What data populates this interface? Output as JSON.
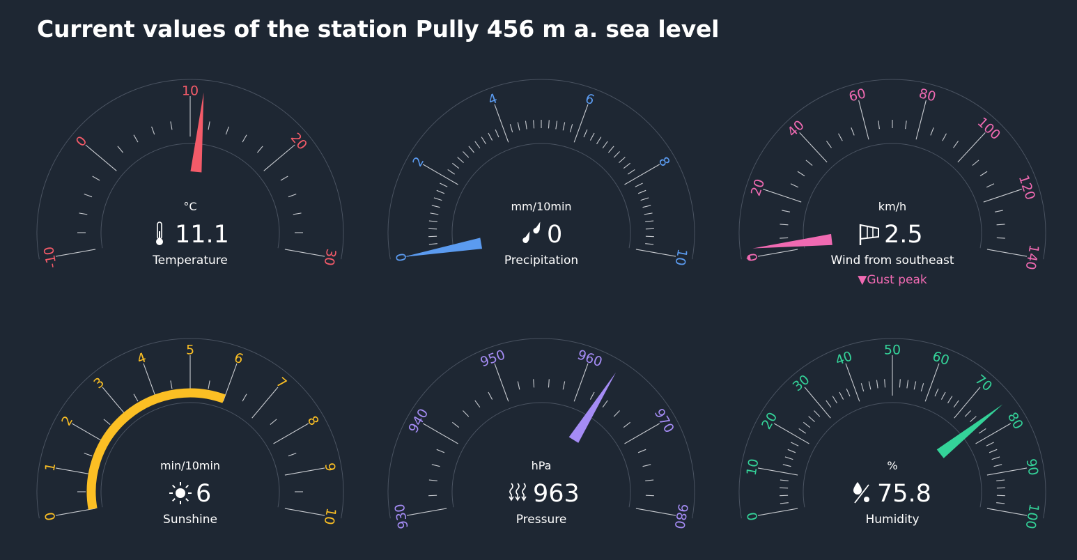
{
  "page": {
    "title": "Current values of the station Pully 456 m a. sea level"
  },
  "gauges": [
    {
      "id": "temperature",
      "icon": "thermometer-icon",
      "unit": "°C",
      "value_text": "11.1",
      "label": "Temperature",
      "value": 11.1,
      "min": -10,
      "max": 30,
      "majors": [
        -10,
        0,
        10,
        20,
        30
      ],
      "minors_per_major": 5,
      "indicator": "needle",
      "color": "#f45b69"
    },
    {
      "id": "precipitation",
      "icon": "rain-drops-icon",
      "unit": "mm/10min",
      "value_text": "0",
      "label": "Precipitation",
      "value": 0,
      "min": 0,
      "max": 10,
      "majors": [
        0,
        2,
        4,
        6,
        8,
        10
      ],
      "minors_per_major": 10,
      "indicator": "needle",
      "color": "#5b9bf0"
    },
    {
      "id": "wind",
      "icon": "wind-sock-icon",
      "unit": "km/h",
      "value_text": "2.5",
      "label": "Wind from southeast",
      "value": 2.5,
      "gust_value": 0,
      "gust_label": "▼Gust peak",
      "min": 0,
      "max": 140,
      "majors": [
        0,
        20,
        40,
        60,
        80,
        100,
        120,
        140
      ],
      "minors_per_major": 4,
      "indicator": "needle",
      "color": "#f06ab2"
    },
    {
      "id": "sunshine",
      "icon": "sun-icon",
      "unit": "min/10min",
      "value_text": "6",
      "label": "Sunshine",
      "value": 6,
      "min": 0,
      "max": 10,
      "majors": [
        0,
        1,
        2,
        3,
        4,
        5,
        6,
        7,
        8,
        9,
        10
      ],
      "minors_per_major": 2,
      "indicator": "arc",
      "color": "#fbbf24"
    },
    {
      "id": "pressure",
      "icon": "pressure-arrows-icon",
      "unit": "hPa",
      "value_text": "963",
      "label": "Pressure",
      "value": 963,
      "min": 930,
      "max": 980,
      "majors": [
        930,
        940,
        950,
        960,
        970,
        980
      ],
      "minors_per_major": 5,
      "indicator": "needle",
      "color": "#a58cf5"
    },
    {
      "id": "humidity",
      "icon": "humidity-icon",
      "unit": "%",
      "value_text": "75.8",
      "label": "Humidity",
      "value": 75.8,
      "min": 0,
      "max": 100,
      "majors": [
        0,
        10,
        20,
        30,
        40,
        50,
        60,
        70,
        80,
        90,
        100
      ],
      "minors_per_major": 5,
      "indicator": "needle",
      "color": "#34d399"
    }
  ]
}
